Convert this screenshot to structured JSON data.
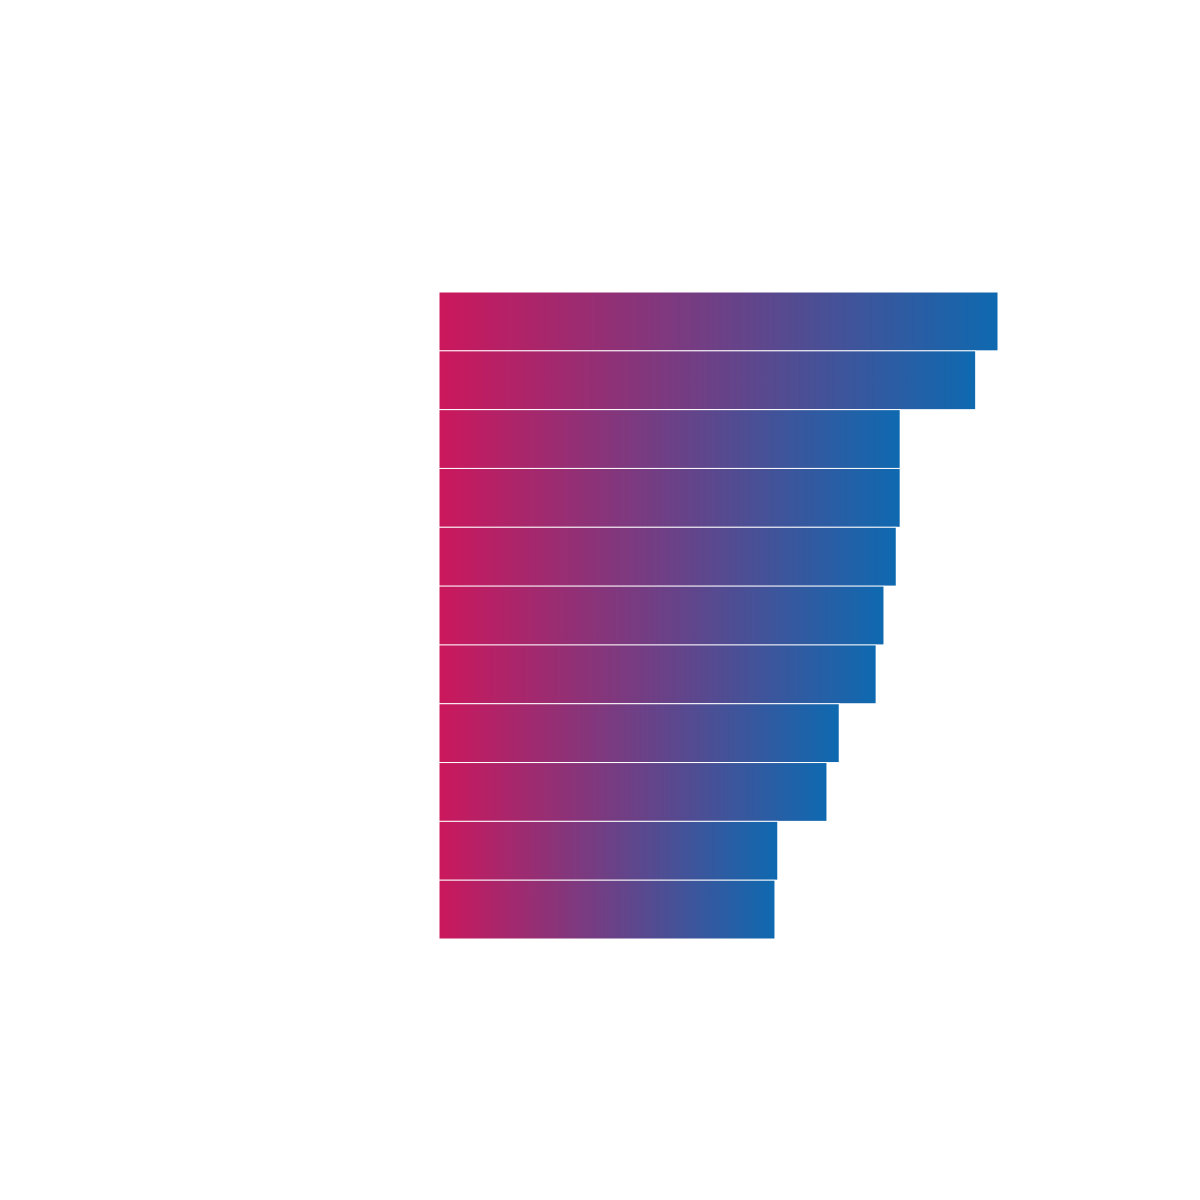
{
  "chart_data": {
    "type": "bar",
    "orientation": "horizontal",
    "title": "",
    "xlabel": "",
    "ylabel": "",
    "grid": false,
    "legend": "none",
    "xlim": [
      0,
      100
    ],
    "values": [
      100,
      96,
      82.5,
      82.5,
      81.8,
      79.6,
      78.2,
      71.6,
      69.4,
      60.6,
      60.1
    ],
    "colors": {
      "gradient_start": "#cc175c",
      "gradient_end": "#0e69b0",
      "separator": "#ffffff",
      "background": "#ffffff"
    }
  }
}
